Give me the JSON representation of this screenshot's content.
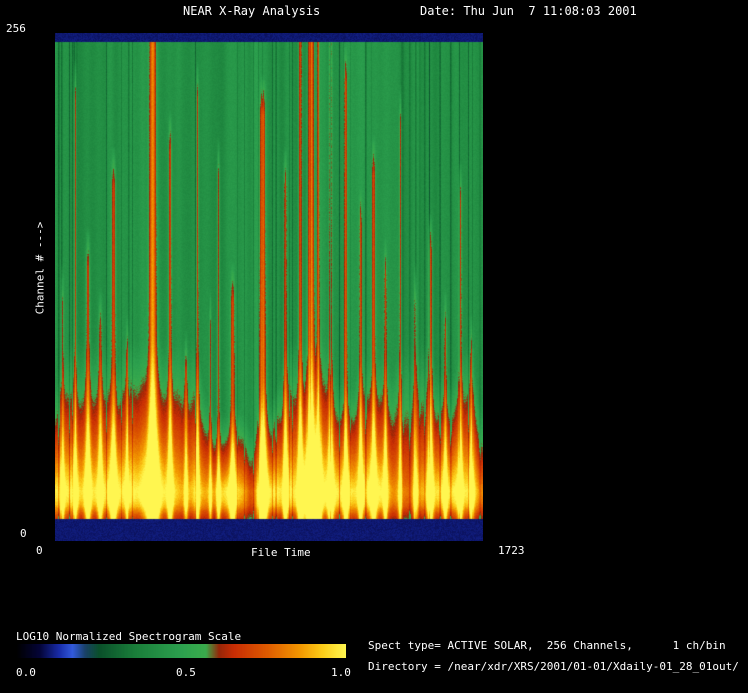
{
  "window": {
    "title": "NEAR X-Ray Analysis",
    "date_label": "Date: Thu Jun  7 11:08:03 2001"
  },
  "axes": {
    "y_max_label": "256",
    "y_min_label": "0",
    "y_title": "Channel # --->",
    "x_min_label": "0",
    "x_max_label": "1723",
    "x_title": "File Time"
  },
  "colorbar": {
    "label": "LOG10 Normalized Spectrogram Scale",
    "tick_labels": [
      "0.0",
      "0.5",
      "1.0"
    ]
  },
  "info": {
    "line1": "Spect type= ACTIVE SOLAR,  256 Channels,      1 ch/bin",
    "line2": "Directory = /near/xdr/XRS/2001/01-01/Xdaily-01_28_01out/"
  },
  "chart_data": {
    "type": "heatmap",
    "title": "NEAR X-Ray Analysis",
    "xlabel": "File Time",
    "ylabel": "Channel #",
    "xlim": [
      0,
      1723
    ],
    "ylim": [
      0,
      256
    ],
    "legend": "none",
    "grid": false,
    "colorbar": {
      "label": "LOG10 Normalized Spectrogram Scale",
      "ticks": [
        0.0,
        0.5,
        1.0
      ]
    },
    "description": "X-ray spectrogram: green background (normalized ~0.45), a bright red/orange band with yellow hotspots in the low channels (bottom ~20% of plot), many narrow vertical red flare streaks rising from the band, and dark navy no-data bands at the very top and bottom rows.",
    "colormap_stops": [
      [
        0.0,
        0,
        0,
        0
      ],
      [
        0.07,
        4,
        4,
        55
      ],
      [
        0.13,
        25,
        45,
        170
      ],
      [
        0.17,
        50,
        90,
        220
      ],
      [
        0.21,
        25,
        65,
        100
      ],
      [
        0.25,
        10,
        80,
        42
      ],
      [
        0.36,
        26,
        126,
        58
      ],
      [
        0.5,
        44,
        160,
        78
      ],
      [
        0.575,
        58,
        172,
        76
      ],
      [
        0.615,
        150,
        38,
        8
      ],
      [
        0.66,
        200,
        45,
        4
      ],
      [
        0.76,
        222,
        90,
        0
      ],
      [
        0.86,
        242,
        150,
        0
      ],
      [
        0.93,
        252,
        205,
        25
      ],
      [
        1.0,
        255,
        246,
        80
      ]
    ],
    "render": {
      "seed": 42,
      "base_level": 0.44,
      "top_gap_frac": 0.016,
      "bottom_gap_frac": 0.044,
      "gap_value": 0.1,
      "band": {
        "center": 0.9,
        "height_base": 0.13,
        "amp_base": 0.34,
        "sigma_down": 0.05
      },
      "band_gaps": [
        {
          "c": 0.465,
          "w": 0.013,
          "depth_a": 0.24,
          "depth_h": 0.1
        },
        {
          "c": 0.37,
          "w": 0.012,
          "depth_a": 0.12,
          "depth_h": 0.05
        },
        {
          "c": 0.5,
          "w": 0.008,
          "depth_a": 0.1,
          "depth_h": 0.04
        }
      ],
      "streaks": [
        {
          "c": 0.016,
          "w": 0.004,
          "t": 0.55,
          "s": 0.34
        },
        {
          "c": 0.046,
          "w": 0.005,
          "t": 0.95,
          "s": 0.4
        },
        {
          "c": 0.076,
          "w": 0.006,
          "t": 0.62,
          "s": 0.38
        },
        {
          "c": 0.105,
          "w": 0.005,
          "t": 0.5,
          "s": 0.33
        },
        {
          "c": 0.136,
          "w": 0.007,
          "t": 0.78,
          "s": 0.42
        },
        {
          "c": 0.168,
          "w": 0.004,
          "t": 0.45,
          "s": 0.3
        },
        {
          "c": 0.227,
          "w": 0.012,
          "t": 1.15,
          "s": 0.62
        },
        {
          "c": 0.268,
          "w": 0.005,
          "t": 0.85,
          "s": 0.4
        },
        {
          "c": 0.305,
          "w": 0.004,
          "t": 0.42,
          "s": 0.3
        },
        {
          "c": 0.332,
          "w": 0.004,
          "t": 0.95,
          "s": 0.38
        },
        {
          "c": 0.362,
          "w": 0.003,
          "t": 0.5,
          "s": 0.28
        },
        {
          "c": 0.381,
          "w": 0.004,
          "t": 0.8,
          "s": 0.35
        },
        {
          "c": 0.414,
          "w": 0.006,
          "t": 0.55,
          "s": 0.38
        },
        {
          "c": 0.484,
          "w": 0.009,
          "t": 0.92,
          "s": 0.52
        },
        {
          "c": 0.537,
          "w": 0.005,
          "t": 0.78,
          "s": 0.38
        },
        {
          "c": 0.572,
          "w": 0.006,
          "t": 1.15,
          "s": 0.46
        },
        {
          "c": 0.597,
          "w": 0.011,
          "t": 1.15,
          "s": 0.62
        },
        {
          "c": 0.615,
          "w": 0.006,
          "t": 1.1,
          "s": 0.5
        },
        {
          "c": 0.643,
          "w": 0.006,
          "t": 1.05,
          "s": 0.46
        },
        {
          "c": 0.678,
          "w": 0.005,
          "t": 0.98,
          "s": 0.42
        },
        {
          "c": 0.713,
          "w": 0.004,
          "t": 0.7,
          "s": 0.35
        },
        {
          "c": 0.743,
          "w": 0.006,
          "t": 0.8,
          "s": 0.4
        },
        {
          "c": 0.771,
          "w": 0.004,
          "t": 0.6,
          "s": 0.33
        },
        {
          "c": 0.806,
          "w": 0.004,
          "t": 0.9,
          "s": 0.36
        },
        {
          "c": 0.841,
          "w": 0.004,
          "t": 0.55,
          "s": 0.33
        },
        {
          "c": 0.876,
          "w": 0.006,
          "t": 0.65,
          "s": 0.4
        },
        {
          "c": 0.911,
          "w": 0.004,
          "t": 0.5,
          "s": 0.32
        },
        {
          "c": 0.946,
          "w": 0.005,
          "t": 0.75,
          "s": 0.36
        },
        {
          "c": 0.972,
          "w": 0.004,
          "t": 0.45,
          "s": 0.3
        }
      ]
    }
  }
}
